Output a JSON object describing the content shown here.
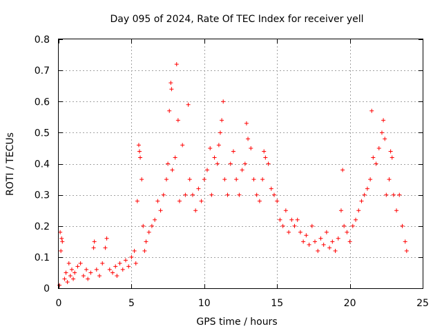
{
  "chart_data": {
    "type": "scatter",
    "title": "Day 095 of 2024, Rate Of TEC Index for receiver yell",
    "xlabel": "GPS time / hours",
    "ylabel": "ROTI / TECUs",
    "xlim": [
      0,
      25
    ],
    "ylim": [
      0,
      0.8
    ],
    "xticks": [
      0,
      5,
      10,
      15,
      20,
      25
    ],
    "xtick_labels": [
      "0",
      "5",
      "10",
      "15",
      "20",
      "25"
    ],
    "yticks": [
      0,
      0.1,
      0.2,
      0.3,
      0.4,
      0.5,
      0.6,
      0.7,
      0.8
    ],
    "ytick_labels": [
      "0",
      "0.1",
      "0.2",
      "0.3",
      "0.4",
      "0.5",
      "0.6",
      "0.7",
      "0.8"
    ],
    "grid": true,
    "marker": "+",
    "color": "#ff0000",
    "series": [
      {
        "name": "ROTI",
        "points": [
          [
            0.05,
            0.01
          ],
          [
            0.1,
            0.18
          ],
          [
            0.15,
            0.12
          ],
          [
            0.2,
            0.16
          ],
          [
            0.25,
            0.15
          ],
          [
            0.4,
            0.03
          ],
          [
            0.5,
            0.05
          ],
          [
            0.6,
            0.02
          ],
          [
            0.7,
            0.08
          ],
          [
            0.8,
            0.04
          ],
          [
            0.9,
            0.06
          ],
          [
            1.0,
            0.03
          ],
          [
            1.1,
            0.05
          ],
          [
            1.3,
            0.07
          ],
          [
            1.5,
            0.08
          ],
          [
            1.7,
            0.04
          ],
          [
            1.9,
            0.06
          ],
          [
            2.0,
            0.03
          ],
          [
            2.2,
            0.05
          ],
          [
            2.4,
            0.13
          ],
          [
            2.45,
            0.15
          ],
          [
            2.6,
            0.06
          ],
          [
            2.8,
            0.04
          ],
          [
            3.0,
            0.08
          ],
          [
            3.2,
            0.13
          ],
          [
            3.3,
            0.16
          ],
          [
            3.5,
            0.06
          ],
          [
            3.7,
            0.05
          ],
          [
            3.9,
            0.07
          ],
          [
            4.0,
            0.04
          ],
          [
            4.2,
            0.08
          ],
          [
            4.4,
            0.06
          ],
          [
            4.6,
            0.09
          ],
          [
            4.8,
            0.07
          ],
          [
            5.0,
            0.1
          ],
          [
            5.2,
            0.12
          ],
          [
            5.3,
            0.08
          ],
          [
            5.4,
            0.28
          ],
          [
            5.5,
            0.46
          ],
          [
            5.55,
            0.44
          ],
          [
            5.6,
            0.42
          ],
          [
            5.7,
            0.35
          ],
          [
            5.8,
            0.2
          ],
          [
            5.9,
            0.12
          ],
          [
            6.0,
            0.15
          ],
          [
            6.2,
            0.18
          ],
          [
            6.4,
            0.2
          ],
          [
            6.6,
            0.22
          ],
          [
            6.8,
            0.28
          ],
          [
            7.0,
            0.25
          ],
          [
            7.2,
            0.3
          ],
          [
            7.4,
            0.35
          ],
          [
            7.5,
            0.4
          ],
          [
            7.6,
            0.57
          ],
          [
            7.7,
            0.66
          ],
          [
            7.75,
            0.64
          ],
          [
            7.8,
            0.38
          ],
          [
            8.0,
            0.42
          ],
          [
            8.1,
            0.72
          ],
          [
            8.2,
            0.54
          ],
          [
            8.3,
            0.28
          ],
          [
            8.5,
            0.46
          ],
          [
            8.7,
            0.3
          ],
          [
            8.9,
            0.59
          ],
          [
            9.0,
            0.35
          ],
          [
            9.2,
            0.3
          ],
          [
            9.4,
            0.25
          ],
          [
            9.6,
            0.32
          ],
          [
            9.8,
            0.28
          ],
          [
            10.0,
            0.35
          ],
          [
            10.2,
            0.38
          ],
          [
            10.4,
            0.45
          ],
          [
            10.5,
            0.3
          ],
          [
            10.7,
            0.42
          ],
          [
            10.9,
            0.4
          ],
          [
            11.0,
            0.46
          ],
          [
            11.1,
            0.5
          ],
          [
            11.2,
            0.54
          ],
          [
            11.3,
            0.6
          ],
          [
            11.4,
            0.35
          ],
          [
            11.6,
            0.3
          ],
          [
            11.8,
            0.4
          ],
          [
            12.0,
            0.44
          ],
          [
            12.2,
            0.35
          ],
          [
            12.4,
            0.3
          ],
          [
            12.6,
            0.38
          ],
          [
            12.8,
            0.4
          ],
          [
            12.9,
            0.53
          ],
          [
            13.0,
            0.48
          ],
          [
            13.2,
            0.45
          ],
          [
            13.4,
            0.35
          ],
          [
            13.6,
            0.3
          ],
          [
            13.8,
            0.28
          ],
          [
            14.0,
            0.35
          ],
          [
            14.1,
            0.44
          ],
          [
            14.2,
            0.42
          ],
          [
            14.4,
            0.4
          ],
          [
            14.6,
            0.32
          ],
          [
            14.8,
            0.3
          ],
          [
            15.0,
            0.28
          ],
          [
            15.2,
            0.22
          ],
          [
            15.4,
            0.2
          ],
          [
            15.6,
            0.25
          ],
          [
            15.8,
            0.18
          ],
          [
            16.0,
            0.22
          ],
          [
            16.2,
            0.2
          ],
          [
            16.4,
            0.22
          ],
          [
            16.6,
            0.18
          ],
          [
            16.8,
            0.15
          ],
          [
            17.0,
            0.17
          ],
          [
            17.2,
            0.14
          ],
          [
            17.4,
            0.2
          ],
          [
            17.6,
            0.15
          ],
          [
            17.8,
            0.12
          ],
          [
            18.0,
            0.16
          ],
          [
            18.2,
            0.14
          ],
          [
            18.4,
            0.18
          ],
          [
            18.6,
            0.13
          ],
          [
            18.8,
            0.15
          ],
          [
            19.0,
            0.12
          ],
          [
            19.2,
            0.16
          ],
          [
            19.4,
            0.25
          ],
          [
            19.5,
            0.38
          ],
          [
            19.6,
            0.2
          ],
          [
            19.8,
            0.18
          ],
          [
            20.0,
            0.15
          ],
          [
            20.2,
            0.2
          ],
          [
            20.4,
            0.22
          ],
          [
            20.6,
            0.25
          ],
          [
            20.8,
            0.28
          ],
          [
            21.0,
            0.3
          ],
          [
            21.2,
            0.32
          ],
          [
            21.4,
            0.35
          ],
          [
            21.5,
            0.57
          ],
          [
            21.6,
            0.42
          ],
          [
            21.8,
            0.4
          ],
          [
            22.0,
            0.45
          ],
          [
            22.2,
            0.5
          ],
          [
            22.3,
            0.54
          ],
          [
            22.4,
            0.48
          ],
          [
            22.5,
            0.3
          ],
          [
            22.7,
            0.35
          ],
          [
            22.8,
            0.44
          ],
          [
            22.9,
            0.42
          ],
          [
            23.0,
            0.3
          ],
          [
            23.2,
            0.25
          ],
          [
            23.4,
            0.3
          ],
          [
            23.6,
            0.2
          ],
          [
            23.8,
            0.15
          ],
          [
            23.9,
            0.12
          ]
        ]
      }
    ]
  }
}
